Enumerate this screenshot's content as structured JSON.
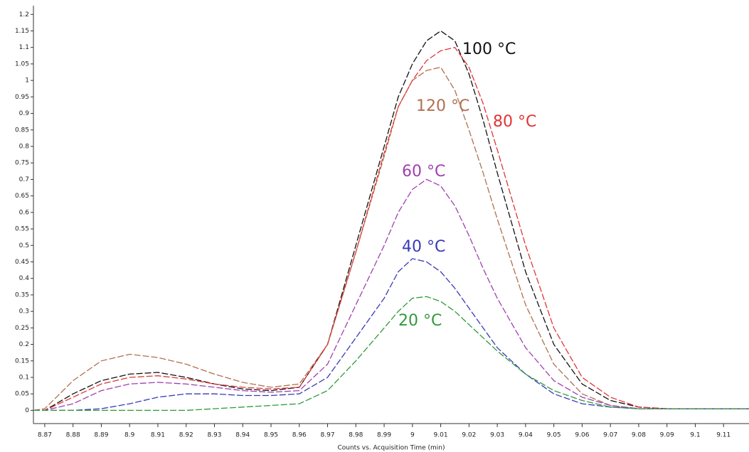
{
  "chart_data": {
    "type": "line",
    "x_label": "Counts vs. Acquisition Time (min)",
    "x": [
      8.866,
      8.87,
      8.88,
      8.89,
      8.9,
      8.91,
      8.92,
      8.93,
      8.94,
      8.95,
      8.96,
      8.97,
      8.98,
      8.99,
      8.995,
      9,
      9.005,
      9.01,
      9.015,
      9.02,
      9.025,
      9.03,
      9.04,
      9.05,
      9.06,
      9.07,
      9.08,
      9.09,
      9.1,
      9.11,
      9.119
    ],
    "series": [
      {
        "name": "100 °C",
        "color": "#111111",
        "values": [
          0,
          0,
          0.05,
          0.09,
          0.11,
          0.115,
          0.1,
          0.08,
          0.065,
          0.06,
          0.07,
          0.2,
          0.5,
          0.8,
          0.95,
          1.05,
          1.12,
          1.15,
          1.12,
          1.02,
          0.88,
          0.72,
          0.42,
          0.2,
          0.08,
          0.03,
          0.01,
          0.005,
          0.005,
          0.005,
          0.005
        ]
      },
      {
        "name": "120 °C",
        "color": "#b07050",
        "values": [
          0,
          0.005,
          0.09,
          0.15,
          0.17,
          0.16,
          0.14,
          0.11,
          0.085,
          0.07,
          0.08,
          0.2,
          0.48,
          0.77,
          0.92,
          1.0,
          1.03,
          1.04,
          0.97,
          0.85,
          0.72,
          0.58,
          0.32,
          0.14,
          0.05,
          0.015,
          0.005,
          0.005,
          0.005,
          0.005,
          0.005
        ]
      },
      {
        "name": "80 °C",
        "color": "#e03535",
        "values": [
          0,
          0,
          0.04,
          0.08,
          0.1,
          0.105,
          0.095,
          0.08,
          0.07,
          0.065,
          0.07,
          0.2,
          0.48,
          0.78,
          0.92,
          1.0,
          1.06,
          1.09,
          1.1,
          1.04,
          0.93,
          0.79,
          0.5,
          0.25,
          0.1,
          0.04,
          0.01,
          0.005,
          0.005,
          0.005,
          0.005
        ]
      },
      {
        "name": "60 °C",
        "color": "#a040b0",
        "values": [
          0,
          0,
          0.02,
          0.06,
          0.08,
          0.085,
          0.08,
          0.07,
          0.06,
          0.055,
          0.06,
          0.14,
          0.32,
          0.5,
          0.6,
          0.67,
          0.7,
          0.68,
          0.62,
          0.53,
          0.43,
          0.34,
          0.19,
          0.09,
          0.04,
          0.015,
          0.005,
          0.005,
          0.005,
          0.005,
          0.005
        ]
      },
      {
        "name": "40 °C",
        "color": "#3a3ab8",
        "values": [
          0,
          0,
          0,
          0.005,
          0.02,
          0.04,
          0.05,
          0.05,
          0.045,
          0.045,
          0.05,
          0.1,
          0.22,
          0.34,
          0.42,
          0.46,
          0.45,
          0.42,
          0.37,
          0.31,
          0.25,
          0.19,
          0.11,
          0.05,
          0.02,
          0.01,
          0.005,
          0.005,
          0.005,
          0.005,
          0.005
        ]
      },
      {
        "name": "20 °C",
        "color": "#2f9a3a",
        "values": [
          0,
          0,
          0,
          0,
          0,
          0,
          0,
          0.005,
          0.01,
          0.015,
          0.02,
          0.06,
          0.15,
          0.25,
          0.3,
          0.34,
          0.345,
          0.33,
          0.3,
          0.26,
          0.22,
          0.18,
          0.11,
          0.06,
          0.03,
          0.01,
          0.005,
          0.005,
          0.005,
          0.005,
          0.005
        ]
      }
    ],
    "line_style": "dashed",
    "xlim": [
      8.866,
      9.119
    ],
    "xticks": [
      8.87,
      8.88,
      8.89,
      8.9,
      8.91,
      8.92,
      8.93,
      8.94,
      8.95,
      8.96,
      8.97,
      8.98,
      8.99,
      9,
      9.01,
      9.02,
      9.03,
      9.04,
      9.05,
      9.06,
      9.07,
      9.08,
      9.09,
      9.1,
      9.11
    ],
    "ylim": [
      -0.04,
      1.22
    ],
    "yticks": [
      0,
      0.05,
      0.1,
      0.15,
      0.2,
      0.25,
      0.3,
      0.35,
      0.4,
      0.45,
      0.5,
      0.55,
      0.6,
      0.65,
      0.7,
      0.75,
      0.8,
      0.85,
      0.9,
      0.95,
      1,
      1.05,
      1.1,
      1.15,
      1.2
    ]
  }
}
